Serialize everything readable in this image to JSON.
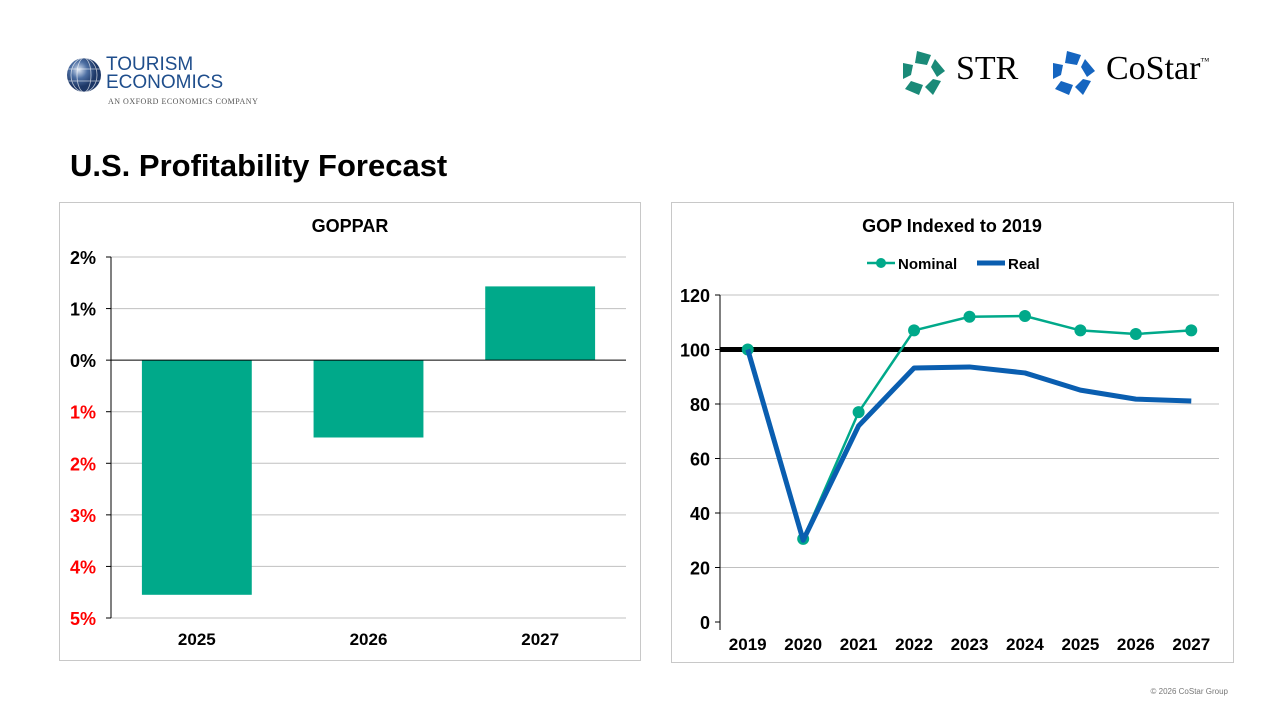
{
  "logos": {
    "tourism_economics": [
      "TOURISM",
      "ECONOMICS",
      "AN OXFORD ECONOMICS COMPANY"
    ],
    "str": "STR",
    "costar": "CoStar",
    "costar_tm": "™"
  },
  "page_title": "U.S. Profitability Forecast",
  "copyright": "© 2026 CoStar Group",
  "colors": {
    "green": "#00A98A",
    "blue": "#0A5EB0",
    "red": "#FF0000",
    "str_green": "#1A8A78",
    "costar_blue": "#1565C0"
  },
  "chart_data": [
    {
      "type": "bar",
      "title": "GOPPAR",
      "categories": [
        "2025",
        "2026",
        "2027"
      ],
      "values": [
        -4.55,
        -1.5,
        1.43
      ],
      "unit": "%",
      "ylim": [
        -5,
        2
      ],
      "ytick_values": [
        2,
        1,
        0,
        -1,
        -2,
        -3,
        -4,
        -5
      ],
      "ytick_labels": [
        "2%",
        "1%",
        "0%",
        "1%",
        "2%",
        "3%",
        "4%",
        "5%"
      ],
      "negative_label_color": "#FF0000",
      "grid": true
    },
    {
      "type": "line",
      "title": "GOP Indexed to 2019",
      "categories": [
        "2019",
        "2020",
        "2021",
        "2022",
        "2023",
        "2024",
        "2025",
        "2026",
        "2027"
      ],
      "series": [
        {
          "name": "Nominal",
          "values": [
            100,
            30.5,
            77,
            107,
            112,
            112.3,
            107,
            105.7,
            107
          ],
          "color": "#00A98A",
          "markers": true
        },
        {
          "name": "Real",
          "values": [
            100,
            30,
            72,
            93.2,
            93.6,
            91.4,
            85.1,
            81.8,
            81.1
          ],
          "color": "#0A5EB0",
          "markers": false
        }
      ],
      "reference_line": 100,
      "ylim": [
        0,
        120
      ],
      "ytick_labels": [
        "0",
        "20",
        "40",
        "60",
        "80",
        "100",
        "120"
      ],
      "legend": "top",
      "grid": true
    }
  ]
}
